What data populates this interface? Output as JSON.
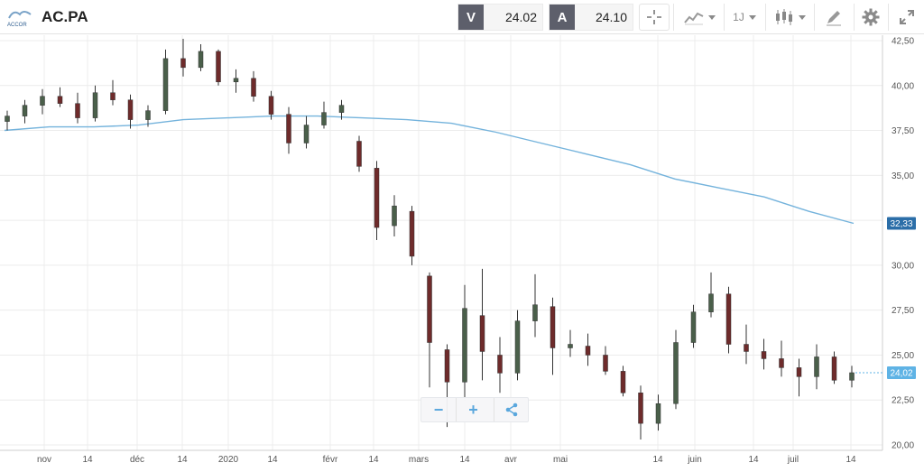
{
  "header": {
    "logo": "ACCOR",
    "symbol": "AC.PA",
    "bid_letter": "V",
    "bid_value": "24.02",
    "ask_letter": "A",
    "ask_value": "24.10",
    "period_label": "1J"
  },
  "icons": {
    "crosshair": "crosshair-icon",
    "indicators": "line-chart-icon",
    "chart_type": "candlestick-icon",
    "drawing": "pencil-icon",
    "settings": "gear-icon",
    "fullscreen": "expand-icon",
    "share": "share-icon"
  },
  "colors": {
    "up": "#4a5f4a",
    "down": "#6e2b2b",
    "moving_average": "#74b3dc",
    "ma_tag": "#2b6ea8",
    "price_tag": "#5fb3e5"
  },
  "zoom": {
    "minus": "−",
    "plus": "+"
  },
  "chart_data": {
    "type": "candlestick",
    "y_range": [
      19.7,
      42.8
    ],
    "y_ticks": [
      "42,50",
      "40,00",
      "37,50",
      "35,00",
      "32,50",
      "30,00",
      "27,50",
      "25,00",
      "22,50",
      "20,00"
    ],
    "x_ticks": [
      "nov",
      "14",
      "déc",
      "14",
      "2020",
      "14",
      "févr",
      "14",
      "mars",
      "14",
      "avr",
      "mai",
      "14",
      "juin",
      "14",
      "juil",
      "14"
    ],
    "last_price_label": "24,02",
    "ma_label": "32,33",
    "grid": true,
    "moving_average": [
      37.5,
      37.7,
      37.7,
      37.8,
      38.1,
      38.2,
      38.3,
      38.3,
      38.2,
      38.1,
      37.9,
      37.4,
      36.8,
      36.2,
      35.6,
      34.8,
      34.3,
      33.8,
      33.0,
      32.33
    ],
    "candles": [
      [
        38.0,
        38.6,
        37.5,
        38.3
      ],
      [
        38.3,
        39.2,
        37.9,
        38.9
      ],
      [
        38.9,
        39.8,
        38.4,
        39.4
      ],
      [
        39.4,
        39.9,
        38.8,
        39.0
      ],
      [
        39.0,
        39.6,
        37.9,
        38.2
      ],
      [
        38.2,
        40.0,
        38.0,
        39.6
      ],
      [
        39.6,
        40.3,
        38.9,
        39.2
      ],
      [
        39.2,
        39.5,
        37.6,
        38.1
      ],
      [
        38.1,
        38.9,
        37.7,
        38.6
      ],
      [
        38.6,
        42.0,
        38.4,
        41.5
      ],
      [
        41.5,
        42.6,
        40.5,
        41.0
      ],
      [
        41.0,
        42.3,
        40.8,
        41.9
      ],
      [
        41.9,
        42.0,
        40.0,
        40.2
      ],
      [
        40.2,
        40.9,
        39.6,
        40.4
      ],
      [
        40.4,
        40.8,
        39.1,
        39.4
      ],
      [
        39.4,
        39.7,
        38.1,
        38.4
      ],
      [
        38.4,
        38.8,
        36.2,
        36.8
      ],
      [
        36.8,
        38.3,
        36.5,
        37.8
      ],
      [
        37.8,
        39.1,
        37.6,
        38.5
      ],
      [
        38.5,
        39.2,
        38.1,
        38.9
      ],
      [
        36.9,
        37.2,
        35.2,
        35.5
      ],
      [
        35.4,
        35.8,
        31.4,
        32.1
      ],
      [
        32.2,
        33.9,
        31.6,
        33.3
      ],
      [
        33.0,
        33.3,
        30.0,
        30.5
      ],
      [
        29.4,
        29.6,
        23.2,
        25.7
      ],
      [
        25.3,
        25.6,
        21.0,
        23.5
      ],
      [
        23.5,
        28.9,
        22.6,
        27.6
      ],
      [
        27.2,
        29.8,
        23.6,
        25.2
      ],
      [
        25.0,
        26.0,
        22.9,
        24.0
      ],
      [
        24.0,
        27.5,
        23.6,
        26.9
      ],
      [
        26.9,
        29.5,
        26.0,
        27.8
      ],
      [
        27.7,
        28.2,
        23.9,
        25.4
      ],
      [
        25.4,
        26.4,
        24.9,
        25.6
      ],
      [
        25.5,
        26.2,
        24.4,
        25.0
      ],
      [
        25.0,
        25.5,
        23.9,
        24.1
      ],
      [
        24.1,
        24.4,
        22.7,
        22.9
      ],
      [
        22.9,
        23.3,
        20.3,
        21.2
      ],
      [
        21.2,
        22.8,
        20.8,
        22.3
      ],
      [
        22.3,
        26.4,
        22.0,
        25.7
      ],
      [
        25.7,
        27.8,
        25.4,
        27.4
      ],
      [
        27.4,
        29.6,
        27.1,
        28.4
      ],
      [
        28.4,
        28.8,
        25.1,
        25.6
      ],
      [
        25.6,
        26.7,
        24.5,
        25.2
      ],
      [
        25.2,
        25.9,
        24.2,
        24.8
      ],
      [
        24.8,
        25.8,
        23.8,
        24.3
      ],
      [
        24.3,
        24.8,
        22.7,
        23.8
      ],
      [
        23.8,
        25.6,
        23.1,
        24.9
      ],
      [
        24.9,
        25.2,
        23.4,
        23.6
      ],
      [
        23.6,
        24.4,
        23.2,
        24.02
      ]
    ]
  }
}
